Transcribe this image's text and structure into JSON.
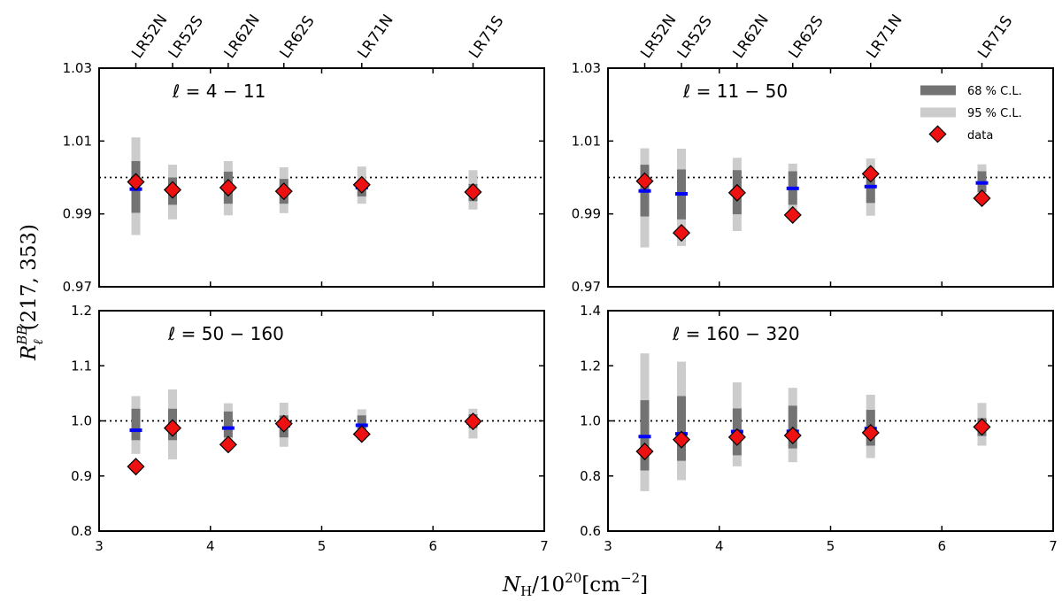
{
  "chart_data": {
    "type": "scatter",
    "figure_xlabel": "N_H/10^20[cm^-2]",
    "figure_ylabel": "R_ℓ^BB(217, 353)",
    "xlim": [
      3,
      7
    ],
    "xticks": [
      "3",
      "4",
      "5",
      "6",
      "7"
    ],
    "regions": [
      {
        "name": "LR52N",
        "x": 3.33
      },
      {
        "name": "LR52S",
        "x": 3.66
      },
      {
        "name": "LR62N",
        "x": 4.16
      },
      {
        "name": "LR62S",
        "x": 4.66
      },
      {
        "name": "LR71N",
        "x": 5.36
      },
      {
        "name": "LR71S",
        "x": 6.36
      }
    ],
    "legend": {
      "cl68": "68 % C.L.",
      "cl95": "95 % C.L.",
      "data": "data"
    },
    "colors": {
      "cl68": "#737373",
      "cl95": "#cccccc",
      "model": "#0000ff",
      "data": "#ee1111",
      "reference": "#000000"
    },
    "reference_line": 1.0,
    "panels": [
      {
        "label": "ℓ = 4 − 11",
        "ylim": [
          0.97,
          1.03
        ],
        "yticks": [
          "1.03",
          "1.01",
          "0.99",
          "0.97"
        ],
        "model": [
          0.9968,
          0.9964,
          0.997,
          0.9961,
          0.9972,
          0.996
        ],
        "cl68": [
          [
            0.9903,
            1.0045
          ],
          [
            0.9925,
            1.0
          ],
          [
            0.9928,
            1.0016
          ],
          [
            0.9928,
            0.9996
          ],
          [
            0.9948,
            0.9993
          ],
          [
            0.9935,
            0.9982
          ]
        ],
        "cl95": [
          [
            0.9842,
            1.011
          ],
          [
            0.9885,
            1.0035
          ],
          [
            0.9896,
            1.0045
          ],
          [
            0.9902,
            1.0028
          ],
          [
            0.9928,
            1.003
          ],
          [
            0.9912,
            1.002
          ]
        ],
        "data": [
          0.9988,
          0.9966,
          0.9972,
          0.9962,
          0.998,
          0.996
        ]
      },
      {
        "label": "ℓ = 11 − 50",
        "ylim": [
          0.97,
          1.03
        ],
        "yticks": [
          "1.03",
          "1.01",
          "0.99",
          "0.97"
        ],
        "model": [
          0.9963,
          0.9955,
          0.9962,
          0.997,
          0.9975,
          0.9985
        ],
        "cl68": [
          [
            0.9893,
            1.0035
          ],
          [
            0.9885,
            1.0022
          ],
          [
            0.9899,
            1.002
          ],
          [
            0.9925,
            1.0017
          ],
          [
            0.993,
            1.0006
          ],
          [
            0.996,
            1.0017
          ]
        ],
        "cl95": [
          [
            0.9808,
            1.008
          ],
          [
            0.9812,
            1.0079
          ],
          [
            0.9853,
            1.0054
          ],
          [
            0.9898,
            1.0038
          ],
          [
            0.9895,
            1.0052
          ],
          [
            0.9946,
            1.0036
          ]
        ],
        "data": [
          0.999,
          0.9848,
          0.9958,
          0.9897,
          1.001,
          0.9943
        ]
      },
      {
        "label": "ℓ = 50 − 160",
        "ylim": [
          0.8,
          1.2
        ],
        "yticks": [
          "1.2",
          "1.1",
          "1.0",
          "0.9",
          "0.8"
        ],
        "model": [
          0.983,
          0.987,
          0.987,
          0.991,
          0.992,
          0.996
        ],
        "cl68": [
          [
            0.965,
            1.022
          ],
          [
            0.965,
            1.022
          ],
          [
            0.97,
            1.017
          ],
          [
            0.97,
            1.01
          ],
          [
            0.98,
            1.01
          ],
          [
            0.987,
            1.012
          ]
        ],
        "cl95": [
          [
            0.94,
            1.045
          ],
          [
            0.93,
            1.057
          ],
          [
            0.955,
            1.032
          ],
          [
            0.953,
            1.033
          ],
          [
            0.965,
            1.021
          ],
          [
            0.968,
            1.022
          ]
        ],
        "data": [
          0.917,
          0.987,
          0.957,
          0.995,
          0.976,
          0.999
        ]
      },
      {
        "label": "ℓ = 160 − 320",
        "ylim": [
          0.6,
          1.4
        ],
        "yticks": [
          "1.4",
          "1.2",
          "1.0",
          "0.8",
          "0.6"
        ],
        "model": [
          0.943,
          0.953,
          0.961,
          0.962,
          0.972,
          0.981
        ],
        "cl68": [
          [
            0.82,
            1.075
          ],
          [
            0.855,
            1.09
          ],
          [
            0.875,
            1.045
          ],
          [
            0.9,
            1.055
          ],
          [
            0.91,
            1.04
          ],
          [
            0.945,
            1.01
          ]
        ],
        "cl95": [
          [
            0.745,
            1.245
          ],
          [
            0.785,
            1.215
          ],
          [
            0.835,
            1.14
          ],
          [
            0.85,
            1.12
          ],
          [
            0.865,
            1.095
          ],
          [
            0.91,
            1.065
          ]
        ],
        "data": [
          0.889,
          0.932,
          0.941,
          0.947,
          0.957,
          0.978
        ]
      }
    ]
  }
}
